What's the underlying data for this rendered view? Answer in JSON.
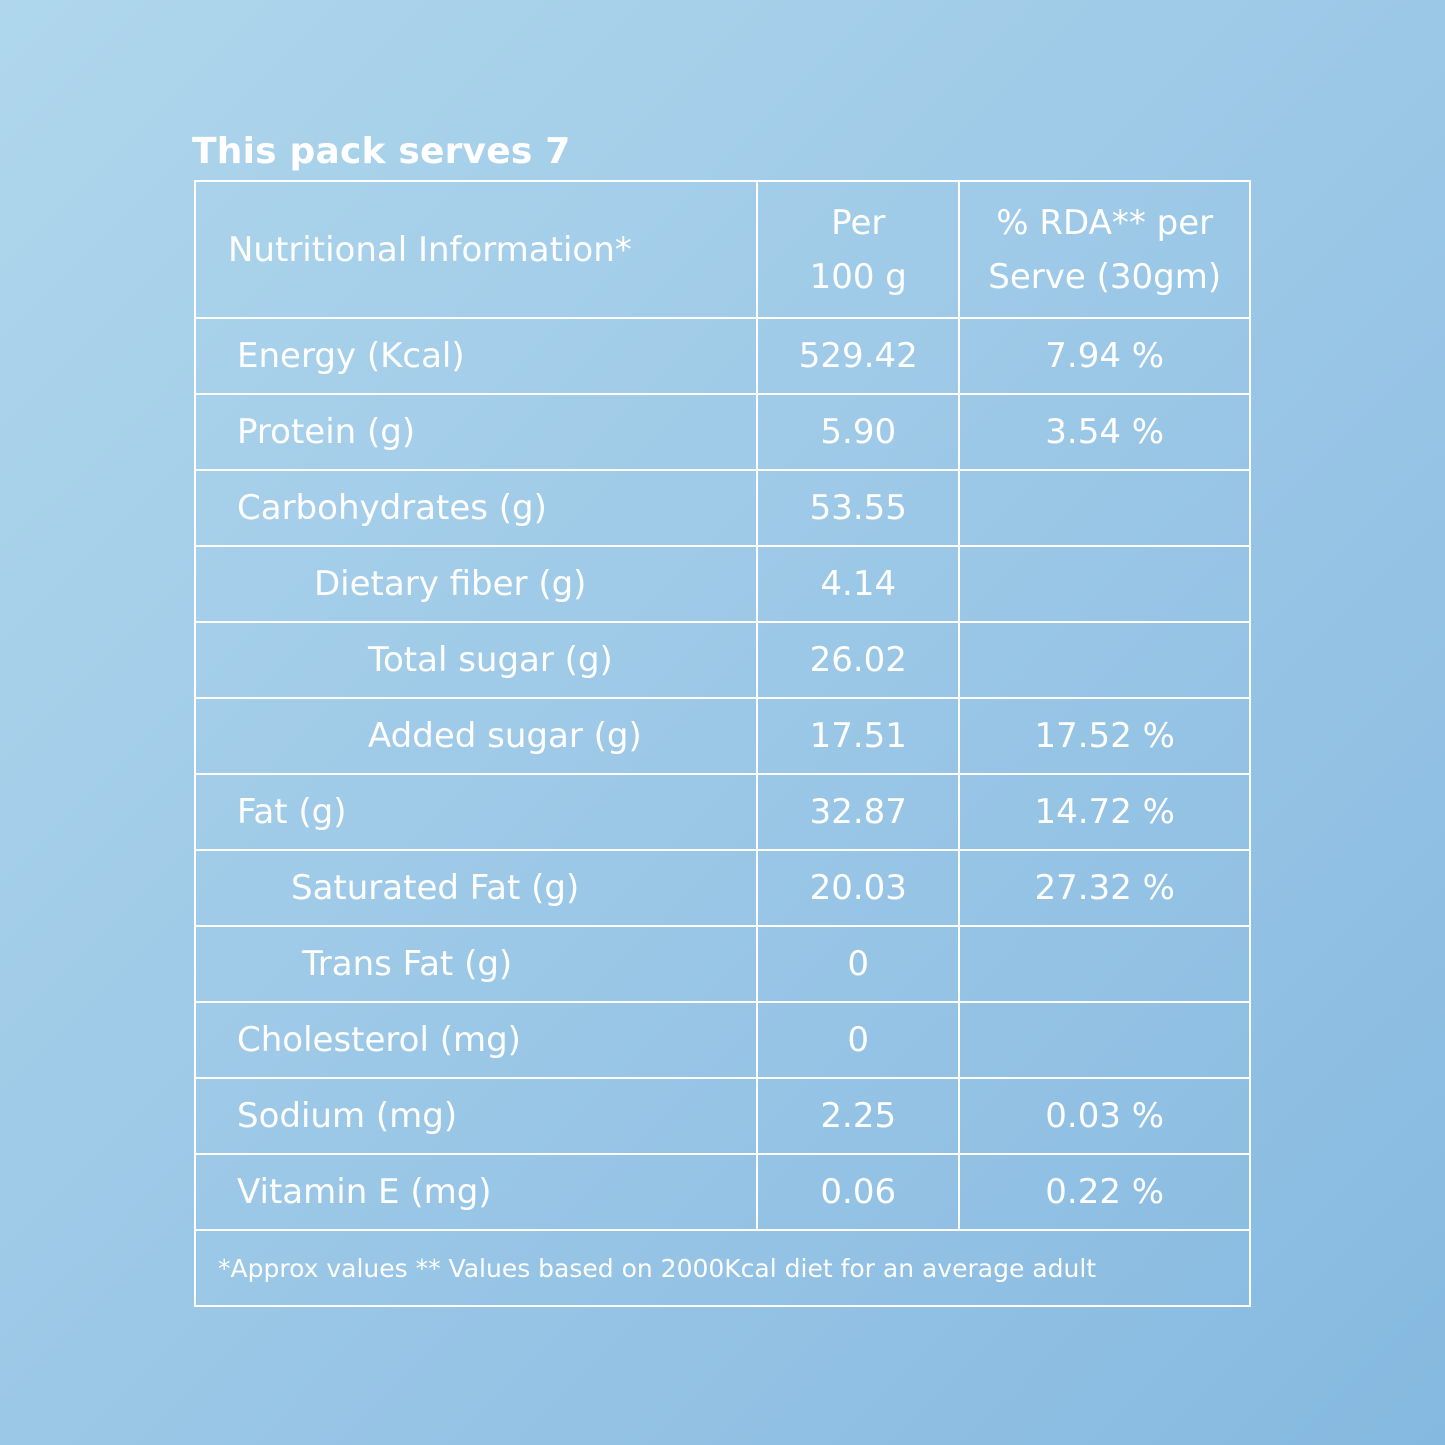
{
  "title": "This pack serves 7",
  "table": {
    "header": {
      "name": "Nutritional Information*",
      "per_line1": "Per",
      "per_line2": "100 g",
      "rda_line1": "% RDA** per",
      "rda_line2": "Serve (30gm)"
    },
    "rows": [
      {
        "name": "Energy (Kcal)",
        "per": "529.42",
        "rda": "7.94 %",
        "indent": 0
      },
      {
        "name": "Protein (g)",
        "per": "5.90",
        "rda": "3.54 %",
        "indent": 0
      },
      {
        "name": "Carbohydrates (g)",
        "per": "53.55",
        "rda": "",
        "indent": 0
      },
      {
        "name": "Dietary fiber (g)",
        "per": "4.14",
        "rda": "",
        "indent": 1
      },
      {
        "name": "Total sugar (g)",
        "per": "26.02",
        "rda": "",
        "indent": 2
      },
      {
        "name": "Added sugar (g)",
        "per": "17.51",
        "rda": "17.52 %",
        "indent": 2
      },
      {
        "name": "Fat (g)",
        "per": "32.87",
        "rda": "14.72 %",
        "indent": 0
      },
      {
        "name": "Saturated Fat (g)",
        "per": "20.03",
        "rda": "27.32 %",
        "indent": 1
      },
      {
        "name": "Trans Fat (g)",
        "per": "0",
        "rda": "",
        "indent": 1
      },
      {
        "name": "Cholesterol (mg)",
        "per": "0",
        "rda": "",
        "indent": 0
      },
      {
        "name": "Sodium (mg)",
        "per": "2.25",
        "rda": "0.03 %",
        "indent": 0
      },
      {
        "name": "Vitamin E (mg)",
        "per": "0.06",
        "rda": "0.22 %",
        "indent": 0
      }
    ],
    "footnote": "*Approx values ** Values based on 2000Kcal diet for an average adult"
  }
}
